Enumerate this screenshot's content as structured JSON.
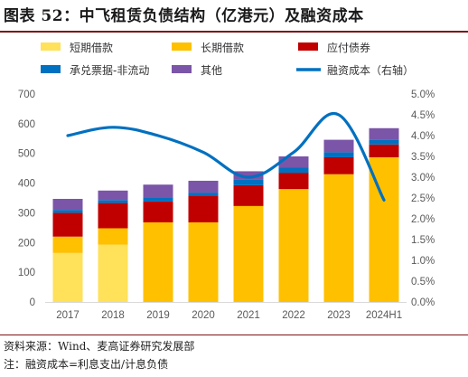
{
  "title": "图表 52：中飞租赁负债结构（亿港元）及融资成本",
  "source": "资料来源：Wind、麦高证券研究发展部",
  "note": "注：融资成本=利息支出/计息负债",
  "colors": {
    "short_loan": "#FFE15A",
    "long_loan": "#FFC000",
    "bonds": "#C00000",
    "notes": "#0070C0",
    "other": "#7B55A8",
    "cost_line": "#0070C0",
    "title_rule": "#7a1416"
  },
  "chart_data": {
    "type": "bar",
    "stacked": true,
    "categories": [
      "2017",
      "2018",
      "2019",
      "2020",
      "2021",
      "2022",
      "2023",
      "2024H1"
    ],
    "series": [
      {
        "name": "短期借款",
        "values": [
          165,
          193,
          0,
          0,
          0,
          0,
          0,
          0
        ]
      },
      {
        "name": "长期借款",
        "values": [
          55,
          55,
          268,
          268,
          323,
          380,
          430,
          487
        ]
      },
      {
        "name": "应付债券",
        "values": [
          80,
          85,
          70,
          90,
          70,
          55,
          57,
          43
        ]
      },
      {
        "name": "承兑票据-非流动",
        "values": [
          10,
          10,
          12,
          10,
          20,
          17,
          17,
          15
        ]
      },
      {
        "name": "其他",
        "values": [
          37,
          32,
          45,
          40,
          27,
          38,
          42,
          40
        ]
      }
    ],
    "line_series": {
      "name": "融资成本（右轴）",
      "axis": "right",
      "values": [
        4.0,
        4.2,
        4.0,
        3.6,
        3.0,
        3.6,
        4.5,
        2.45
      ]
    },
    "ylim": [
      0,
      700
    ],
    "y_ticks": [
      0,
      100,
      200,
      300,
      400,
      500,
      600,
      700
    ],
    "y2lim": [
      0,
      5.0
    ],
    "y2_ticks": [
      "0.0%",
      "0.5%",
      "1.0%",
      "1.5%",
      "2.0%",
      "2.5%",
      "3.0%",
      "3.5%",
      "4.0%",
      "4.5%",
      "5.0%"
    ],
    "legend_position": "top",
    "grid": false
  }
}
